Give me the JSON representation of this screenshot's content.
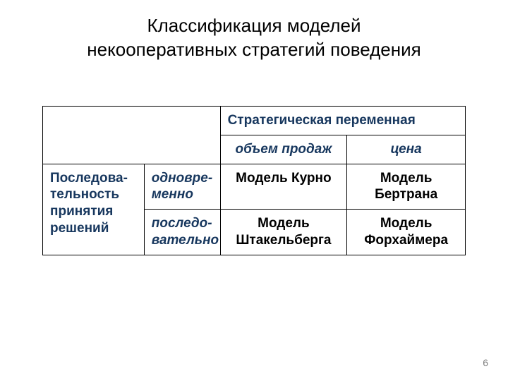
{
  "title": "Классификация моделей\nнекооперативных стратегий поведения",
  "page_number": "6",
  "table": {
    "type": "table",
    "border_color": "#000000",
    "background_color": "#ffffff",
    "header_color": "#17375e",
    "body_text_color": "#000000",
    "font_family": "Arial",
    "column_widths_pct": [
      24,
      18,
      30,
      28
    ],
    "top_header": "Стратегическая переменная",
    "sub_headers": {
      "volume": "объем продаж",
      "price": "цена"
    },
    "row_group_label": "Последова-тельность принятия решений",
    "rows": [
      {
        "timing": "одновре-менно",
        "volume_model": "Модель Курно",
        "price_model": "Модель Бертрана"
      },
      {
        "timing": "последо-вательно",
        "volume_model": "Модель Штакельберга",
        "price_model": "Модель Форхаймера"
      }
    ]
  }
}
